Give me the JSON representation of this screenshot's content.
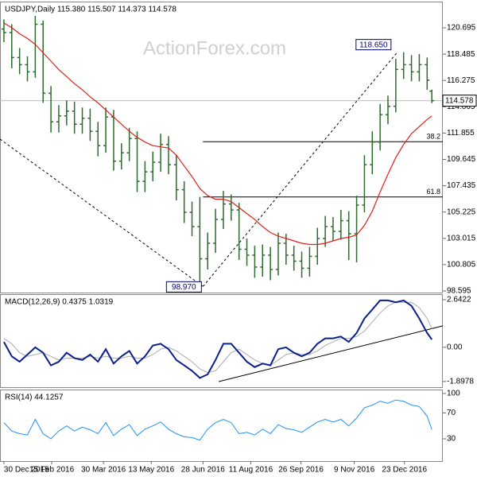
{
  "chart_data": [
    {
      "type": "ohlc",
      "title": "USDJPY,Daily  115.380 115.507 114.373 114.578",
      "watermark": "ActionForex.com",
      "x": [
        0,
        5,
        10,
        15,
        20,
        25,
        30,
        35,
        40,
        45,
        50,
        55,
        60,
        65,
        70,
        75,
        80,
        85,
        90,
        95,
        100,
        105,
        110,
        115,
        120,
        125,
        130,
        135,
        140,
        145,
        150,
        155,
        160,
        165,
        170,
        175,
        180,
        185,
        190,
        195,
        200,
        205,
        210,
        215,
        220,
        225,
        230,
        235,
        240,
        245,
        250,
        255,
        260,
        265,
        270,
        273
      ],
      "open": [
        120.6,
        120.3,
        118.2,
        117.6,
        117.0,
        121.0,
        115.2,
        112.8,
        113.3,
        113.7,
        112.6,
        113.1,
        112.0,
        110.8,
        113.2,
        109.5,
        110.2,
        111.4,
        107.8,
        108.6,
        109.4,
        110.9,
        109.2,
        107.1,
        105.2,
        104.0,
        101.3,
        102.6,
        104.6,
        105.9,
        105.4,
        102.1,
        101.6,
        100.6,
        101.6,
        100.4,
        102.6,
        101.6,
        101.1,
        100.5,
        101.5,
        103.0,
        104.0,
        103.6,
        104.5,
        103.4,
        105.8,
        109.2,
        111.1,
        113.4,
        114.1,
        117.2,
        117.6,
        117.0,
        117.6,
        115.38
      ],
      "high": [
        121.4,
        121.0,
        119.0,
        118.3,
        121.7,
        121.3,
        115.8,
        114.2,
        114.6,
        114.5,
        114.0,
        113.9,
        112.8,
        114.0,
        113.8,
        111.0,
        112.3,
        112.0,
        109.5,
        110.3,
        111.8,
        111.6,
        110.0,
        107.8,
        106.1,
        106.5,
        103.5,
        105.5,
        107.0,
        106.7,
        106.0,
        103.0,
        102.4,
        102.5,
        102.3,
        103.5,
        103.4,
        102.4,
        101.9,
        102.3,
        103.9,
        104.9,
        104.8,
        105.4,
        105.3,
        106.6,
        110.0,
        112.0,
        114.3,
        115.0,
        118.1,
        118.65,
        118.4,
        118.5,
        118.2,
        115.507
      ],
      "low": [
        119.5,
        117.3,
        116.8,
        116.2,
        116.5,
        114.4,
        111.9,
        111.9,
        112.5,
        111.8,
        111.8,
        111.2,
        109.9,
        110.2,
        108.7,
        108.8,
        109.5,
        106.9,
        106.9,
        107.8,
        108.6,
        108.4,
        106.2,
        104.3,
        103.2,
        98.97,
        100.4,
        101.8,
        103.8,
        104.5,
        101.2,
        100.7,
        99.7,
        99.8,
        99.5,
        99.9,
        100.8,
        100.3,
        99.7,
        99.8,
        100.8,
        102.3,
        102.8,
        102.9,
        101.2,
        101.0,
        105.2,
        108.4,
        110.4,
        112.6,
        113.6,
        116.4,
        116.2,
        116.2,
        115.5,
        114.373
      ],
      "close": [
        120.3,
        118.2,
        117.6,
        117.0,
        121.0,
        115.2,
        112.8,
        113.3,
        113.7,
        112.6,
        113.1,
        112.0,
        110.8,
        113.2,
        109.5,
        110.2,
        111.4,
        107.8,
        108.6,
        109.4,
        110.9,
        109.2,
        107.1,
        105.2,
        104.0,
        101.3,
        102.6,
        104.6,
        105.9,
        105.4,
        102.1,
        101.6,
        100.6,
        101.6,
        100.4,
        102.6,
        101.6,
        101.1,
        100.5,
        101.5,
        103.0,
        104.0,
        103.6,
        104.5,
        103.4,
        105.8,
        109.2,
        111.1,
        113.4,
        114.1,
        117.2,
        117.6,
        117.0,
        117.6,
        116.3,
        114.578
      ],
      "color": "#2e6b2e",
      "series": [
        {
          "color": "#e0201b",
          "values": [
            121.1,
            120.7,
            120.2,
            119.8,
            119.3,
            118.6,
            117.9,
            117.2,
            116.6,
            116.0,
            115.5,
            114.9,
            114.4,
            113.8,
            113.2,
            112.6,
            112.0,
            111.5,
            111.1,
            110.8,
            110.7,
            110.6,
            110.0,
            109.1,
            108.2,
            107.2,
            106.6,
            106.3,
            106.3,
            106.1,
            105.6,
            105.1,
            104.6,
            104.0,
            103.5,
            103.2,
            103.0,
            102.8,
            102.6,
            102.5,
            102.5,
            102.6,
            102.8,
            103.0,
            103.1,
            103.3,
            104.1,
            105.3,
            106.9,
            108.4,
            109.8,
            110.9,
            111.8,
            112.4,
            113.0,
            113.3
          ]
        }
      ],
      "xlim": [
        -2.5,
        280
      ],
      "ylim": [
        98.46,
        122.9
      ],
      "yticks": [
        98.595,
        100.805,
        103.015,
        105.225,
        107.435,
        109.645,
        111.855,
        114.065,
        116.275,
        118.485,
        120.695
      ],
      "last_price": 114.578,
      "levels": [
        {
          "label": "38.2",
          "value": 111.13,
          "x": 127
        },
        {
          "label": "61.8",
          "value": 106.49,
          "x": 127
        }
      ],
      "trendlines": [
        {
          "x": [
            -2.5,
            127
          ],
          "values": [
            111.35,
            98.97
          ]
        },
        {
          "x": [
            127,
            251
          ],
          "values": [
            98.97,
            118.65
          ]
        }
      ],
      "callouts": [
        {
          "x": 251,
          "value": 118.65,
          "label": "118.650"
        },
        {
          "x": 127,
          "value": 98.97,
          "label": "98.970"
        }
      ]
    },
    {
      "type": "line",
      "title": "MACD(12,26,9) 0.4375 1.0319",
      "x": [
        0,
        5,
        10,
        15,
        20,
        25,
        30,
        35,
        40,
        45,
        50,
        55,
        60,
        65,
        70,
        75,
        80,
        85,
        90,
        95,
        100,
        105,
        110,
        115,
        120,
        125,
        130,
        135,
        140,
        145,
        150,
        155,
        160,
        165,
        170,
        175,
        180,
        185,
        190,
        195,
        200,
        205,
        210,
        215,
        220,
        225,
        230,
        235,
        240,
        245,
        250,
        255,
        260,
        265,
        270,
        273
      ],
      "series": [
        {
          "color": "#aaaaaa",
          "width": 1,
          "values": [
            0.5,
            0.2,
            -0.3,
            -0.5,
            -0.4,
            -0.3,
            -0.5,
            -0.7,
            -0.6,
            -0.6,
            -0.6,
            -0.5,
            -0.6,
            -0.5,
            -0.6,
            -0.6,
            -0.5,
            -0.6,
            -0.6,
            -0.4,
            -0.1,
            0.0,
            -0.2,
            -0.5,
            -0.8,
            -1.2,
            -1.4,
            -1.3,
            -0.8,
            -0.3,
            -0.1,
            -0.4,
            -0.7,
            -0.9,
            -1.0,
            -0.7,
            -0.4,
            -0.3,
            -0.4,
            -0.4,
            -0.2,
            0.1,
            0.3,
            0.5,
            0.5,
            0.6,
            0.9,
            1.4,
            1.9,
            2.3,
            2.5,
            2.5,
            2.5,
            2.2,
            1.6,
            1.0319
          ]
        },
        {
          "color": "#0a1f8f",
          "width": 2,
          "values": [
            0.3,
            -0.5,
            -0.8,
            -0.4,
            0.0,
            -0.3,
            -1.0,
            -0.8,
            -0.3,
            -0.6,
            -0.7,
            -0.4,
            -0.8,
            -0.1,
            -0.9,
            -0.5,
            -0.2,
            -0.9,
            -0.5,
            0.1,
            0.2,
            -0.1,
            -0.7,
            -1.0,
            -1.3,
            -1.7,
            -1.5,
            -0.7,
            0.2,
            0.2,
            -0.3,
            -0.8,
            -1.1,
            -0.9,
            -1.0,
            -0.1,
            0.0,
            -0.3,
            -0.5,
            -0.3,
            0.2,
            0.5,
            0.5,
            0.6,
            0.3,
            0.8,
            1.6,
            2.1,
            2.6,
            2.6,
            2.5,
            2.6,
            2.3,
            1.6,
            0.8,
            0.4375
          ]
        }
      ],
      "xlim": [
        -2.5,
        280
      ],
      "ylim": [
        -2.21,
        2.95
      ],
      "yticks": [
        -1.8978,
        {
          "value": 0,
          "label": "0.00"
        },
        2.6422
      ],
      "trendlines": [
        {
          "x": [
            137,
            280
          ],
          "values": [
            -1.9,
            1.19
          ]
        }
      ]
    },
    {
      "type": "line",
      "title": "RSI(14) 44.1257",
      "x": [
        0,
        5,
        10,
        15,
        20,
        25,
        30,
        35,
        40,
        45,
        50,
        55,
        60,
        65,
        70,
        75,
        80,
        85,
        90,
        95,
        100,
        105,
        110,
        115,
        120,
        125,
        130,
        135,
        140,
        145,
        150,
        155,
        160,
        165,
        170,
        175,
        180,
        185,
        190,
        195,
        200,
        205,
        210,
        215,
        220,
        225,
        230,
        235,
        240,
        245,
        250,
        255,
        260,
        265,
        270,
        273
      ],
      "series": [
        {
          "color": "#1e90ff",
          "width": 1,
          "values": [
            55,
            42,
            38,
            36,
            60,
            38,
            30,
            42,
            50,
            42,
            48,
            44,
            38,
            55,
            35,
            45,
            52,
            35,
            45,
            50,
            56,
            45,
            38,
            33,
            32,
            28,
            45,
            55,
            60,
            55,
            38,
            40,
            36,
            45,
            38,
            52,
            46,
            44,
            40,
            48,
            56,
            60,
            56,
            60,
            50,
            62,
            78,
            82,
            88,
            85,
            90,
            88,
            82,
            80,
            65,
            44.1257
          ]
        }
      ],
      "xlim": [
        -2.5,
        280
      ],
      "ylim": [
        -4.4,
        106.1
      ],
      "yticks": [
        30,
        70,
        100
      ],
      "xticks": [
        {
          "value": 0,
          "label": "30 Dec 2015"
        },
        {
          "value": 30.5,
          "label": "15 Feb 2016"
        },
        {
          "value": 63.5,
          "label": "30 Mar 2016"
        },
        {
          "value": 94,
          "label": "13 May 2016"
        },
        {
          "value": 127,
          "label": "28 Jun 2016"
        },
        {
          "value": 157.5,
          "label": "11 Aug 2016"
        },
        {
          "value": 189.5,
          "label": "26 Sep 2016"
        },
        {
          "value": 223.5,
          "label": "9 Nov 2016"
        },
        {
          "value": 255.5,
          "label": "23 Dec 2016"
        }
      ]
    }
  ]
}
